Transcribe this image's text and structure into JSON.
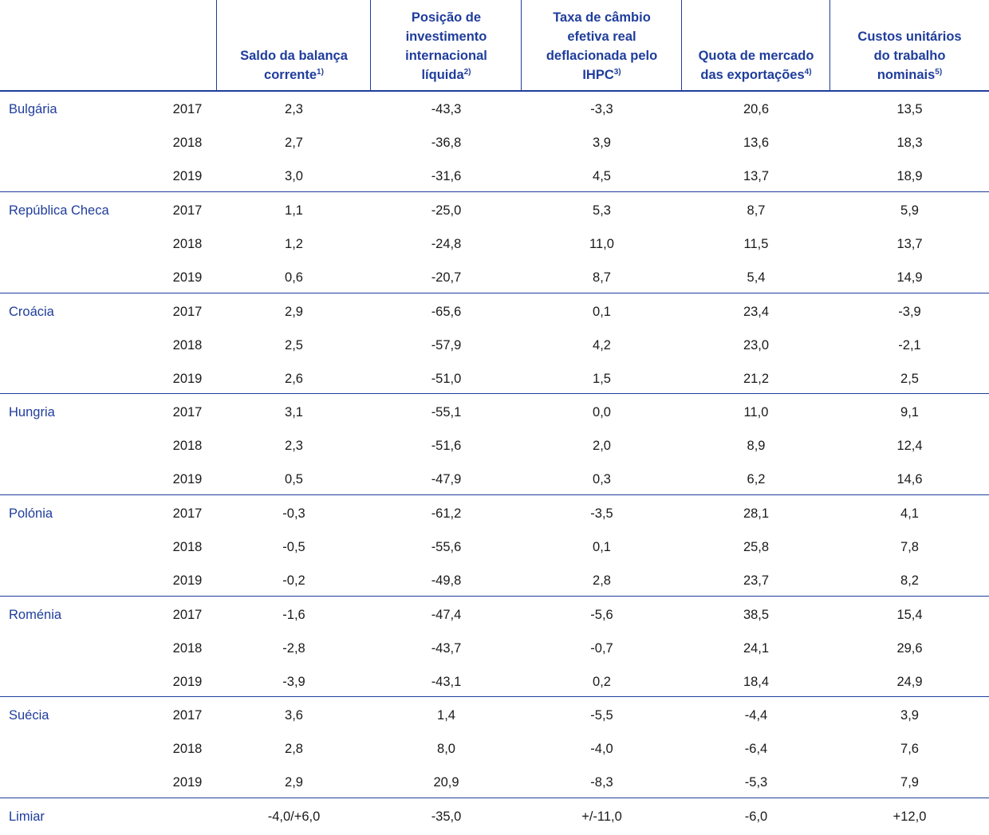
{
  "headers": [
    {
      "lines": [
        "Saldo da balança",
        "corrente"
      ],
      "note": "1)"
    },
    {
      "lines": [
        "Posição de",
        "investimento",
        "internacional",
        "líquida"
      ],
      "note": "2)"
    },
    {
      "lines": [
        "Taxa de câmbio",
        "efetiva real",
        "deflacionada pelo",
        "IHPC"
      ],
      "note": "3)"
    },
    {
      "lines": [
        "Quota de mercado",
        "das exportações"
      ],
      "note": "4)"
    },
    {
      "lines": [
        "Custos unitários",
        "do trabalho",
        "nominais"
      ],
      "note": "5)"
    }
  ],
  "groups": [
    {
      "country": "Bulgária",
      "rows": [
        {
          "year": "2017",
          "values": [
            "2,3",
            "-43,3",
            "-3,3",
            "20,6",
            "13,5"
          ]
        },
        {
          "year": "2018",
          "values": [
            "2,7",
            "-36,8",
            "3,9",
            "13,6",
            "18,3"
          ]
        },
        {
          "year": "2019",
          "values": [
            "3,0",
            "-31,6",
            "4,5",
            "13,7",
            "18,9"
          ]
        }
      ]
    },
    {
      "country": "República Checa",
      "rows": [
        {
          "year": "2017",
          "values": [
            "1,1",
            "-25,0",
            "5,3",
            "8,7",
            "5,9"
          ]
        },
        {
          "year": "2018",
          "values": [
            "1,2",
            "-24,8",
            "11,0",
            "11,5",
            "13,7"
          ]
        },
        {
          "year": "2019",
          "values": [
            "0,6",
            "-20,7",
            "8,7",
            "5,4",
            "14,9"
          ]
        }
      ]
    },
    {
      "country": "Croácia",
      "rows": [
        {
          "year": "2017",
          "values": [
            "2,9",
            "-65,6",
            "0,1",
            "23,4",
            "-3,9"
          ]
        },
        {
          "year": "2018",
          "values": [
            "2,5",
            "-57,9",
            "4,2",
            "23,0",
            "-2,1"
          ]
        },
        {
          "year": "2019",
          "values": [
            "2,6",
            "-51,0",
            "1,5",
            "21,2",
            "2,5"
          ]
        }
      ]
    },
    {
      "country": "Hungria",
      "rows": [
        {
          "year": "2017",
          "values": [
            "3,1",
            "-55,1",
            "0,0",
            "11,0",
            "9,1"
          ]
        },
        {
          "year": "2018",
          "values": [
            "2,3",
            "-51,6",
            "2,0",
            "8,9",
            "12,4"
          ]
        },
        {
          "year": "2019",
          "values": [
            "0,5",
            "-47,9",
            "0,3",
            "6,2",
            "14,6"
          ]
        }
      ]
    },
    {
      "country": "Polónia",
      "rows": [
        {
          "year": "2017",
          "values": [
            "-0,3",
            "-61,2",
            "-3,5",
            "28,1",
            "4,1"
          ]
        },
        {
          "year": "2018",
          "values": [
            "-0,5",
            "-55,6",
            "0,1",
            "25,8",
            "7,8"
          ]
        },
        {
          "year": "2019",
          "values": [
            "-0,2",
            "-49,8",
            "2,8",
            "23,7",
            "8,2"
          ]
        }
      ]
    },
    {
      "country": "Roménia",
      "rows": [
        {
          "year": "2017",
          "values": [
            "-1,6",
            "-47,4",
            "-5,6",
            "38,5",
            "15,4"
          ]
        },
        {
          "year": "2018",
          "values": [
            "-2,8",
            "-43,7",
            "-0,7",
            "24,1",
            "29,6"
          ]
        },
        {
          "year": "2019",
          "values": [
            "-3,9",
            "-43,1",
            "0,2",
            "18,4",
            "24,9"
          ]
        }
      ]
    },
    {
      "country": "Suécia",
      "rows": [
        {
          "year": "2017",
          "values": [
            "3,6",
            "1,4",
            "-5,5",
            "-4,4",
            "3,9"
          ]
        },
        {
          "year": "2018",
          "values": [
            "2,8",
            "8,0",
            "-4,0",
            "-6,4",
            "7,6"
          ]
        },
        {
          "year": "2019",
          "values": [
            "2,9",
            "20,9",
            "-8,3",
            "-5,3",
            "7,9"
          ]
        }
      ]
    }
  ],
  "threshold": {
    "label": "Limiar",
    "values": [
      "-4,0/+6,0",
      "-35,0",
      "+/-11,0",
      "-6,0",
      "+12,0"
    ]
  },
  "colors": {
    "accent": "#1f3d9c",
    "text": "#1a1a1a"
  }
}
